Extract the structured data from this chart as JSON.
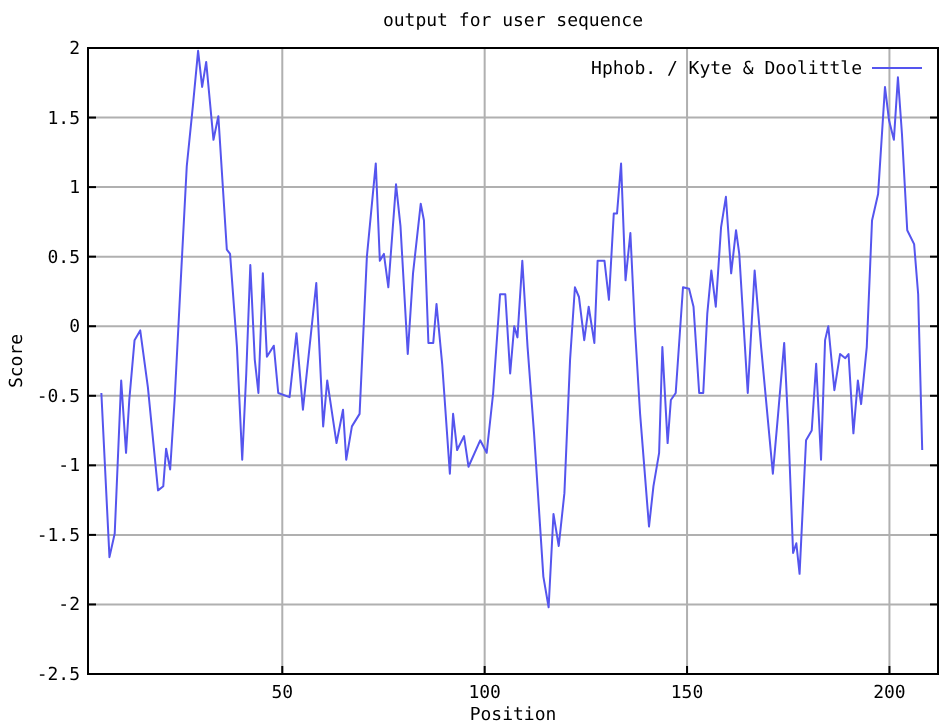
{
  "chart_data": {
    "type": "line",
    "title": "output for user sequence",
    "xlabel": "Position",
    "ylabel": "Score",
    "xlim": [
      2,
      212
    ],
    "xticks": [
      50,
      100,
      150,
      200
    ],
    "ylim": [
      -2.5,
      2
    ],
    "yticks": [
      -2.5,
      -2,
      -1.5,
      -1,
      -0.5,
      0,
      0.5,
      1,
      1.5,
      2
    ],
    "grid": true,
    "legend": "top right",
    "marker": "none",
    "line_style": "solid",
    "series": [
      {
        "name": "Hphob. / Kyte & Doolittle",
        "color": "#5555ee",
        "x": [
          5.3,
          7.3,
          8.6,
          10.2,
          11.4,
          12.2,
          13.5,
          14.9,
          16.8,
          19.3,
          20.6,
          21.3,
          22.3,
          23.4,
          25.1,
          26.4,
          27.9,
          29.2,
          30.2,
          31.2,
          33.0,
          34.2,
          36.3,
          37.1,
          38.8,
          40.1,
          41.1,
          42.1,
          43.2,
          44.1,
          45.2,
          46.2,
          47.9,
          49.0,
          51.8,
          53.5,
          55.1,
          58.4,
          60.1,
          61.1,
          63.4,
          65.0,
          65.8,
          67.2,
          69.1,
          70.9,
          73.1,
          74.1,
          75.1,
          76.2,
          78.1,
          79.2,
          81.0,
          82.3,
          84.2,
          85.0,
          86.1,
          87.3,
          88.1,
          89.5,
          91.4,
          92.2,
          93.2,
          94.9,
          96.0,
          98.9,
          100.5,
          102.1,
          103.8,
          105.1,
          106.3,
          107.3,
          108.1,
          109.3,
          110.6,
          112.2,
          114.5,
          115.8,
          117.0,
          118.3,
          119.7,
          121.1,
          122.3,
          123.3,
          124.6,
          125.7,
          127.1,
          127.9,
          129.6,
          130.7,
          131.9,
          132.7,
          133.7,
          134.8,
          136.0,
          137.1,
          138.4,
          140.6,
          141.7,
          143.1,
          143.9,
          145.2,
          146.0,
          147.2,
          149.0,
          150.5,
          151.6,
          153.0,
          154.0,
          155.0,
          156.0,
          157.1,
          158.4,
          159.6,
          160.9,
          162.1,
          162.9,
          165.0,
          166.7,
          168.3,
          171.2,
          172.5,
          174.0,
          175.0,
          176.2,
          177.0,
          177.8,
          179.4,
          180.8,
          181.9,
          183.1,
          184.1,
          184.9,
          186.4,
          187.8,
          189.1,
          189.9,
          191.1,
          192.2,
          193.0,
          194.4,
          195.7,
          197.2,
          198.9,
          199.9,
          201.1,
          202.1,
          203.1,
          204.4,
          206.1,
          207.1,
          208.1
        ],
        "values": [
          -0.48,
          -1.66,
          -1.49,
          -0.39,
          -0.91,
          -0.53,
          -0.1,
          -0.03,
          -0.44,
          -1.18,
          -1.15,
          -0.88,
          -1.03,
          -0.53,
          0.43,
          1.15,
          1.58,
          1.98,
          1.72,
          1.9,
          1.34,
          1.51,
          0.55,
          0.52,
          -0.15,
          -0.96,
          -0.34,
          0.44,
          -0.24,
          -0.48,
          0.38,
          -0.22,
          -0.14,
          -0.48,
          -0.51,
          -0.05,
          -0.6,
          0.31,
          -0.72,
          -0.39,
          -0.84,
          -0.6,
          -0.96,
          -0.72,
          -0.63,
          0.5,
          1.17,
          0.47,
          0.52,
          0.28,
          1.02,
          0.72,
          -0.2,
          0.38,
          0.88,
          0.76,
          -0.12,
          -0.12,
          0.16,
          -0.27,
          -1.06,
          -0.63,
          -0.89,
          -0.79,
          -1.01,
          -0.82,
          -0.91,
          -0.48,
          0.23,
          0.23,
          -0.34,
          0.0,
          -0.08,
          0.47,
          -0.15,
          -0.77,
          -1.8,
          -2.02,
          -1.35,
          -1.58,
          -1.2,
          -0.24,
          0.28,
          0.21,
          -0.1,
          0.14,
          -0.12,
          0.47,
          0.47,
          0.19,
          0.81,
          0.81,
          1.17,
          0.33,
          0.67,
          0.0,
          -0.63,
          -1.44,
          -1.15,
          -0.91,
          -0.15,
          -0.84,
          -0.53,
          -0.48,
          0.28,
          0.27,
          0.14,
          -0.48,
          -0.48,
          0.09,
          0.4,
          0.14,
          0.71,
          0.93,
          0.38,
          0.69,
          0.52,
          -0.48,
          0.4,
          -0.15,
          -1.06,
          -0.63,
          -0.12,
          -0.72,
          -1.63,
          -1.56,
          -1.78,
          -0.82,
          -0.75,
          -0.27,
          -0.96,
          -0.1,
          0.0,
          -0.46,
          -0.2,
          -0.23,
          -0.2,
          -0.77,
          -0.39,
          -0.56,
          -0.15,
          0.76,
          0.95,
          1.72,
          1.48,
          1.34,
          1.79,
          1.38,
          0.69,
          0.59,
          0.23,
          -0.89
        ]
      }
    ]
  }
}
